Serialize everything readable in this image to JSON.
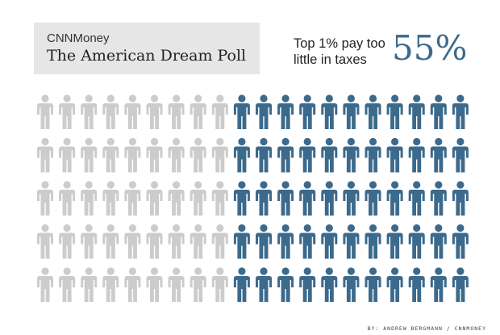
{
  "header": {
    "brand": "CNNMoney",
    "title": "The American Dream Poll"
  },
  "stat": {
    "label": "Top 1% pay too little in taxes",
    "value": "55%"
  },
  "credit": "BY: ANDREW BERGMANN / CNNMONEY",
  "chart_data": {
    "type": "pictogram",
    "icon": "person-icon",
    "rows": 5,
    "columns": 20,
    "total": 100,
    "highlighted": 55,
    "colors": {
      "highlighted": "#3c6a8c",
      "rest": "#cccccc"
    }
  }
}
